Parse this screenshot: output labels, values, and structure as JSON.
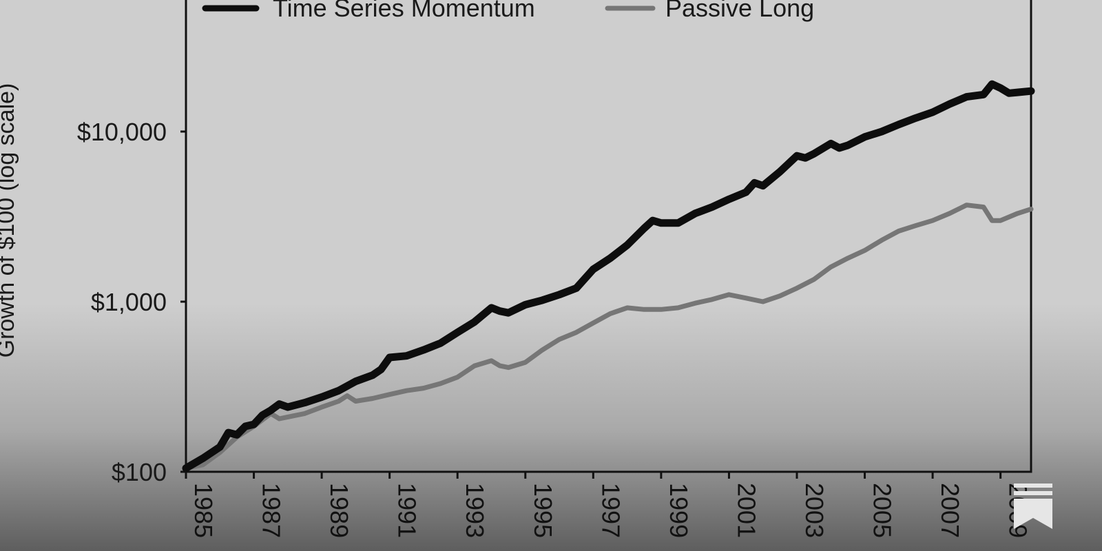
{
  "chart_data": {
    "type": "line",
    "title": "",
    "ylabel": "Growth of $100 (log scale)",
    "xlabel": "",
    "y_scale": "log",
    "ylim": [
      100,
      60000
    ],
    "xlim": [
      1985,
      2009.9
    ],
    "y_ticks": [
      {
        "value": 100,
        "label": "$100"
      },
      {
        "value": 1000,
        "label": "$1,000"
      },
      {
        "value": 10000,
        "label": "$10,000"
      }
    ],
    "x_ticks": [
      {
        "value": 1985,
        "label": "1985"
      },
      {
        "value": 1987,
        "label": "1987"
      },
      {
        "value": 1989,
        "label": "1989"
      },
      {
        "value": 1991,
        "label": "1991"
      },
      {
        "value": 1993,
        "label": "1993"
      },
      {
        "value": 1995,
        "label": "1995"
      },
      {
        "value": 1997,
        "label": "1997"
      },
      {
        "value": 1999,
        "label": "1999"
      },
      {
        "value": 2001,
        "label": "2001"
      },
      {
        "value": 2003,
        "label": "2003"
      },
      {
        "value": 2005,
        "label": "2005"
      },
      {
        "value": 2007,
        "label": "2007"
      },
      {
        "value": 2009,
        "label": "2009"
      }
    ],
    "legend_position": "top",
    "series": [
      {
        "name": "Time Series Momentum",
        "color": "#0d0d0d",
        "points": [
          [
            1985.0,
            105
          ],
          [
            1985.5,
            120
          ],
          [
            1986.0,
            140
          ],
          [
            1986.25,
            170
          ],
          [
            1986.5,
            165
          ],
          [
            1986.75,
            185
          ],
          [
            1987.0,
            190
          ],
          [
            1987.25,
            215
          ],
          [
            1987.5,
            230
          ],
          [
            1987.75,
            250
          ],
          [
            1988.0,
            240
          ],
          [
            1988.5,
            255
          ],
          [
            1989.0,
            275
          ],
          [
            1989.5,
            300
          ],
          [
            1990.0,
            340
          ],
          [
            1990.5,
            370
          ],
          [
            1990.75,
            400
          ],
          [
            1991.0,
            470
          ],
          [
            1991.5,
            480
          ],
          [
            1992.0,
            520
          ],
          [
            1992.5,
            570
          ],
          [
            1993.0,
            660
          ],
          [
            1993.5,
            760
          ],
          [
            1994.0,
            920
          ],
          [
            1994.25,
            880
          ],
          [
            1994.5,
            860
          ],
          [
            1995.0,
            960
          ],
          [
            1995.5,
            1020
          ],
          [
            1996.0,
            1100
          ],
          [
            1996.5,
            1200
          ],
          [
            1997.0,
            1550
          ],
          [
            1997.5,
            1800
          ],
          [
            1998.0,
            2150
          ],
          [
            1998.5,
            2700
          ],
          [
            1998.75,
            3000
          ],
          [
            1999.0,
            2900
          ],
          [
            1999.5,
            2900
          ],
          [
            2000.0,
            3300
          ],
          [
            2000.5,
            3600
          ],
          [
            2001.0,
            4000
          ],
          [
            2001.5,
            4400
          ],
          [
            2001.75,
            5000
          ],
          [
            2002.0,
            4800
          ],
          [
            2002.5,
            5800
          ],
          [
            2003.0,
            7200
          ],
          [
            2003.25,
            7000
          ],
          [
            2003.5,
            7400
          ],
          [
            2004.0,
            8500
          ],
          [
            2004.25,
            8000
          ],
          [
            2004.5,
            8300
          ],
          [
            2005.0,
            9300
          ],
          [
            2005.5,
            10000
          ],
          [
            2006.0,
            11000
          ],
          [
            2006.5,
            12000
          ],
          [
            2007.0,
            13000
          ],
          [
            2007.5,
            14500
          ],
          [
            2008.0,
            16000
          ],
          [
            2008.5,
            16500
          ],
          [
            2008.75,
            19000
          ],
          [
            2009.0,
            18000
          ],
          [
            2009.25,
            16800
          ],
          [
            2009.5,
            17000
          ],
          [
            2009.9,
            17300
          ]
        ]
      },
      {
        "name": "Passive Long",
        "color": "#767676",
        "points": [
          [
            1985.0,
            105
          ],
          [
            1985.5,
            110
          ],
          [
            1986.0,
            130
          ],
          [
            1986.5,
            160
          ],
          [
            1987.0,
            185
          ],
          [
            1987.5,
            220
          ],
          [
            1987.75,
            205
          ],
          [
            1988.0,
            210
          ],
          [
            1988.5,
            220
          ],
          [
            1989.0,
            240
          ],
          [
            1989.5,
            260
          ],
          [
            1989.75,
            280
          ],
          [
            1990.0,
            260
          ],
          [
            1990.5,
            270
          ],
          [
            1991.0,
            285
          ],
          [
            1991.5,
            300
          ],
          [
            1992.0,
            310
          ],
          [
            1992.5,
            330
          ],
          [
            1993.0,
            360
          ],
          [
            1993.5,
            420
          ],
          [
            1994.0,
            450
          ],
          [
            1994.25,
            420
          ],
          [
            1994.5,
            410
          ],
          [
            1995.0,
            440
          ],
          [
            1995.5,
            520
          ],
          [
            1996.0,
            600
          ],
          [
            1996.5,
            660
          ],
          [
            1997.0,
            750
          ],
          [
            1997.5,
            850
          ],
          [
            1998.0,
            920
          ],
          [
            1998.5,
            900
          ],
          [
            1999.0,
            900
          ],
          [
            1999.5,
            920
          ],
          [
            2000.0,
            980
          ],
          [
            2000.5,
            1030
          ],
          [
            2001.0,
            1100
          ],
          [
            2001.5,
            1050
          ],
          [
            2002.0,
            1000
          ],
          [
            2002.5,
            1080
          ],
          [
            2003.0,
            1200
          ],
          [
            2003.5,
            1350
          ],
          [
            2004.0,
            1600
          ],
          [
            2004.5,
            1800
          ],
          [
            2005.0,
            2000
          ],
          [
            2005.5,
            2300
          ],
          [
            2006.0,
            2600
          ],
          [
            2006.5,
            2800
          ],
          [
            2007.0,
            3000
          ],
          [
            2007.5,
            3300
          ],
          [
            2008.0,
            3700
          ],
          [
            2008.5,
            3600
          ],
          [
            2008.75,
            3000
          ],
          [
            2009.0,
            3000
          ],
          [
            2009.5,
            3300
          ],
          [
            2009.9,
            3500
          ]
        ]
      }
    ]
  },
  "icons": {
    "corner": "bookmark-icon"
  }
}
